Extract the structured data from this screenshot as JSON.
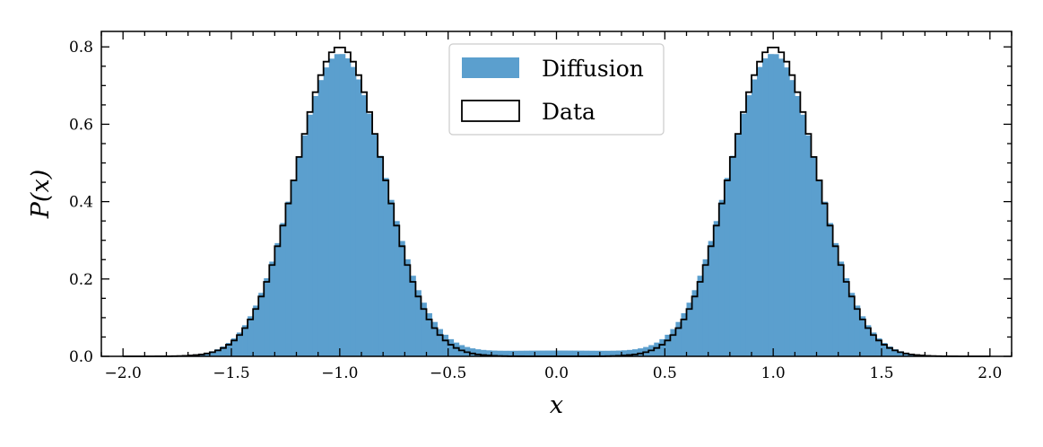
{
  "chart_data": {
    "type": "histogram",
    "xlabel": "x",
    "ylabel": "P(x)",
    "xlim": [
      -2.1,
      2.1
    ],
    "ylim": [
      0,
      0.84
    ],
    "xticks": [
      -2.0,
      -1.5,
      -1.0,
      -0.5,
      0.0,
      0.5,
      1.0,
      1.5,
      2.0
    ],
    "xtick_labels": [
      "−2.0",
      "−1.5",
      "−1.0",
      "−0.5",
      "0.0",
      "0.5",
      "1.0",
      "1.5",
      "2.0"
    ],
    "yticks": [
      0.0,
      0.2,
      0.4,
      0.6,
      0.8
    ],
    "ytick_labels": [
      "0.0",
      "0.2",
      "0.4",
      "0.6",
      "0.8"
    ],
    "legend_position": "top-center",
    "bin_range": [
      -2.0,
      2.0
    ],
    "bin_width": 0.025,
    "series": [
      {
        "name": "Diffusion",
        "style": "filled",
        "color": "#5b9fce",
        "peaks": [
          {
            "center": -1.0,
            "height": 0.78,
            "sigma": 0.205
          },
          {
            "center": 1.0,
            "height": 0.78,
            "sigma": 0.205
          }
        ],
        "baseline_mid": 0.015
      },
      {
        "name": "Data",
        "style": "step",
        "color": "#000000",
        "peaks": [
          {
            "center": -1.0,
            "height": 0.8,
            "sigma": 0.2
          },
          {
            "center": 1.0,
            "height": 0.8,
            "sigma": 0.2
          }
        ],
        "baseline_mid": 0.0
      }
    ]
  }
}
